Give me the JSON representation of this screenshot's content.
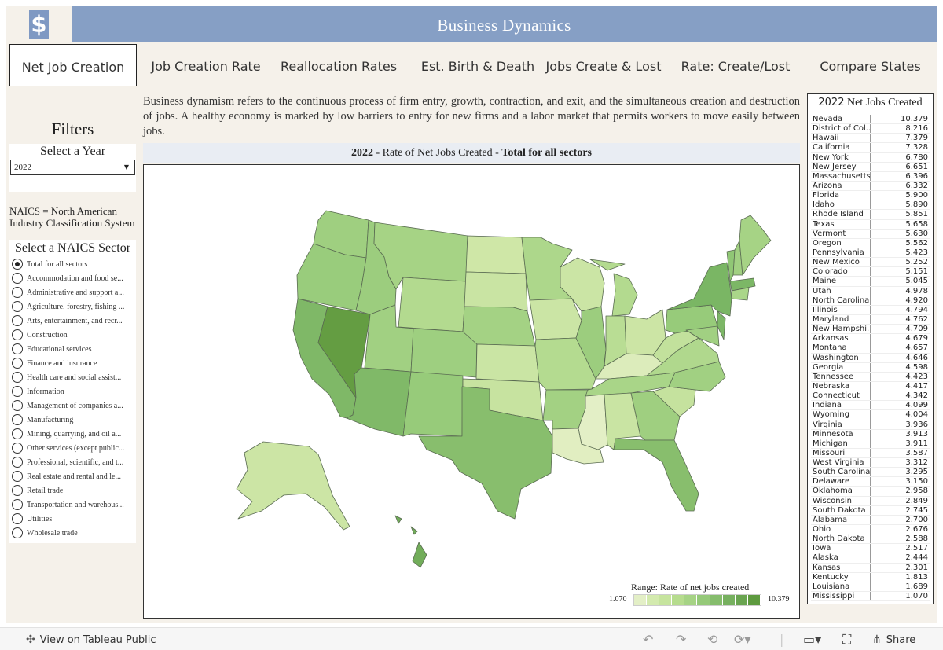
{
  "header": {
    "title": "Business Dynamics",
    "logo_icon": "dollar-sign-icon",
    "logo_glyph": "$"
  },
  "tabs": [
    {
      "label": "Net Job Creation",
      "active": true
    },
    {
      "label": "Job Creation Rate"
    },
    {
      "label": "Reallocation Rates"
    },
    {
      "label": "Est. Birth & Death"
    },
    {
      "label": "Jobs Create & Lost"
    },
    {
      "label": "Rate: Create/Lost"
    },
    {
      "label": "Compare States"
    }
  ],
  "filters": {
    "title": "Filters",
    "year_label": "Select a Year",
    "year_value": "2022",
    "naics_note": "NAICS = North American Industry Classification System",
    "sector_label": "Select a NAICS Sector",
    "sectors": [
      "Total for all sectors",
      "Accommodation and food se...",
      "Administrative and support a...",
      "Agriculture, forestry, fishing ...",
      "Arts, entertainment, and recr...",
      "Construction",
      "Educational services",
      "Finance and insurance",
      "Health care and social assist...",
      "Information",
      "Management of companies a...",
      "Manufacturing",
      "Mining, quarrying, and oil a...",
      "Other services (except public...",
      "Professional, scientific, and t...",
      "Real estate and rental and le...",
      "Retail trade",
      "Transportation and warehous...",
      "Utilities",
      "Wholesale trade"
    ],
    "selected_sector": "Total for all sectors"
  },
  "description": "Business dynamism refers to the continuous process of firm entry, growth, contraction, and exit, and the simultaneous creation and destruction of jobs. A healthy economy is marked by low barriers to entry for new firms and a labor market that permits workers to move easily between jobs.",
  "map": {
    "title_year": "2022",
    "title_sep1": " - Rate of Net Jobs Created - ",
    "title_sector": "Total for all sectors",
    "legend_title": "Range: Rate of net jobs created",
    "legend_min": "1.070",
    "legend_max": "10.379",
    "legend_colors": [
      "#e3efc6",
      "#d3eaae",
      "#c6e49e",
      "#b6dc8e",
      "#a6d385",
      "#95c979",
      "#85bc6c",
      "#76b05f",
      "#69a450",
      "#5d9a3f"
    ]
  },
  "table": {
    "title_year": "2022",
    "title_text": "Net Jobs Created",
    "rows": [
      [
        "Nevada",
        "10.379"
      ],
      [
        "District of Col..",
        "8.216"
      ],
      [
        "Hawaii",
        "7.379"
      ],
      [
        "California",
        "7.328"
      ],
      [
        "New York",
        "6.780"
      ],
      [
        "New Jersey",
        "6.651"
      ],
      [
        "Massachusetts",
        "6.396"
      ],
      [
        "Arizona",
        "6.332"
      ],
      [
        "Florida",
        "5.900"
      ],
      [
        "Idaho",
        "5.890"
      ],
      [
        "Rhode Island",
        "5.851"
      ],
      [
        "Texas",
        "5.658"
      ],
      [
        "Vermont",
        "5.630"
      ],
      [
        "Oregon",
        "5.562"
      ],
      [
        "Pennsylvania",
        "5.423"
      ],
      [
        "New Mexico",
        "5.252"
      ],
      [
        "Colorado",
        "5.151"
      ],
      [
        "Maine",
        "5.045"
      ],
      [
        "Utah",
        "4.978"
      ],
      [
        "North Carolina",
        "4.920"
      ],
      [
        "Illinois",
        "4.794"
      ],
      [
        "Maryland",
        "4.762"
      ],
      [
        "New Hampshi..",
        "4.709"
      ],
      [
        "Arkansas",
        "4.679"
      ],
      [
        "Montana",
        "4.657"
      ],
      [
        "Washington",
        "4.646"
      ],
      [
        "Georgia",
        "4.598"
      ],
      [
        "Tennessee",
        "4.423"
      ],
      [
        "Nebraska",
        "4.417"
      ],
      [
        "Connecticut",
        "4.342"
      ],
      [
        "Indiana",
        "4.099"
      ],
      [
        "Wyoming",
        "4.004"
      ],
      [
        "Virginia",
        "3.936"
      ],
      [
        "Minnesota",
        "3.913"
      ],
      [
        "Michigan",
        "3.911"
      ],
      [
        "Missouri",
        "3.587"
      ],
      [
        "West Virginia",
        "3.312"
      ],
      [
        "South Carolina",
        "3.295"
      ],
      [
        "Delaware",
        "3.150"
      ],
      [
        "Oklahoma",
        "2.958"
      ],
      [
        "Wisconsin",
        "2.849"
      ],
      [
        "South Dakota",
        "2.745"
      ],
      [
        "Alabama",
        "2.700"
      ],
      [
        "Ohio",
        "2.676"
      ],
      [
        "North Dakota",
        "2.588"
      ],
      [
        "Iowa",
        "2.517"
      ],
      [
        "Alaska",
        "2.444"
      ],
      [
        "Kansas",
        "2.301"
      ],
      [
        "Kentucky",
        "1.813"
      ],
      [
        "Louisiana",
        "1.689"
      ],
      [
        "Mississippi",
        "1.070"
      ]
    ]
  },
  "footer": {
    "view_link": "View on Tableau Public",
    "share_label": "Share",
    "icons": [
      "undo-icon",
      "redo-icon",
      "revert-icon",
      "refresh-icon",
      "comment-icon",
      "fullscreen-icon",
      "share-icon"
    ]
  }
}
